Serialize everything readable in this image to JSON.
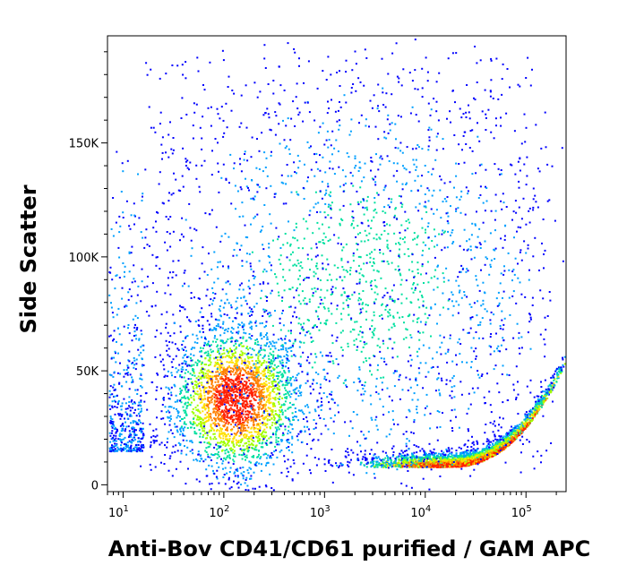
{
  "chart_data": {
    "type": "scatter",
    "subtype": "flow-cytometry-density-dot-plot",
    "xlabel": "Anti-Bov CD41/CD61 purified / GAM APC",
    "ylabel": "Side Scatter",
    "x_scale": "log",
    "y_scale": "linear",
    "xlim": [
      7,
      250000
    ],
    "ylim": [
      -3000,
      197000
    ],
    "x_ticks": [
      {
        "value": 10,
        "base": "10",
        "exp": "1"
      },
      {
        "value": 100,
        "base": "10",
        "exp": "2"
      },
      {
        "value": 1000,
        "base": "10",
        "exp": "3"
      },
      {
        "value": 10000,
        "base": "10",
        "exp": "4"
      },
      {
        "value": 100000,
        "base": "10",
        "exp": "5"
      }
    ],
    "y_ticks": [
      {
        "value": 0,
        "label": "0"
      },
      {
        "value": 50000,
        "label": "50K"
      },
      {
        "value": 100000,
        "label": "100K"
      },
      {
        "value": 150000,
        "label": "150K"
      }
    ],
    "populations": [
      {
        "center_x": 130,
        "center_y": 38000,
        "spread_logx": 0.32,
        "spread_y": 16000,
        "density": "high"
      },
      {
        "center_x": 10000,
        "center_y": 8000,
        "spread_logx": 0.4,
        "spread_y": 5000,
        "density": "high"
      },
      {
        "center_x": 2000,
        "center_y": 90000,
        "spread_logx": 1.0,
        "spread_y": 45000,
        "density": "low"
      }
    ],
    "colormap": [
      "#0000ff",
      "#00a0ff",
      "#00e0a0",
      "#a0ff00",
      "#ffe000",
      "#ff8000",
      "#ff2000"
    ],
    "grid": false,
    "legend": "none"
  }
}
